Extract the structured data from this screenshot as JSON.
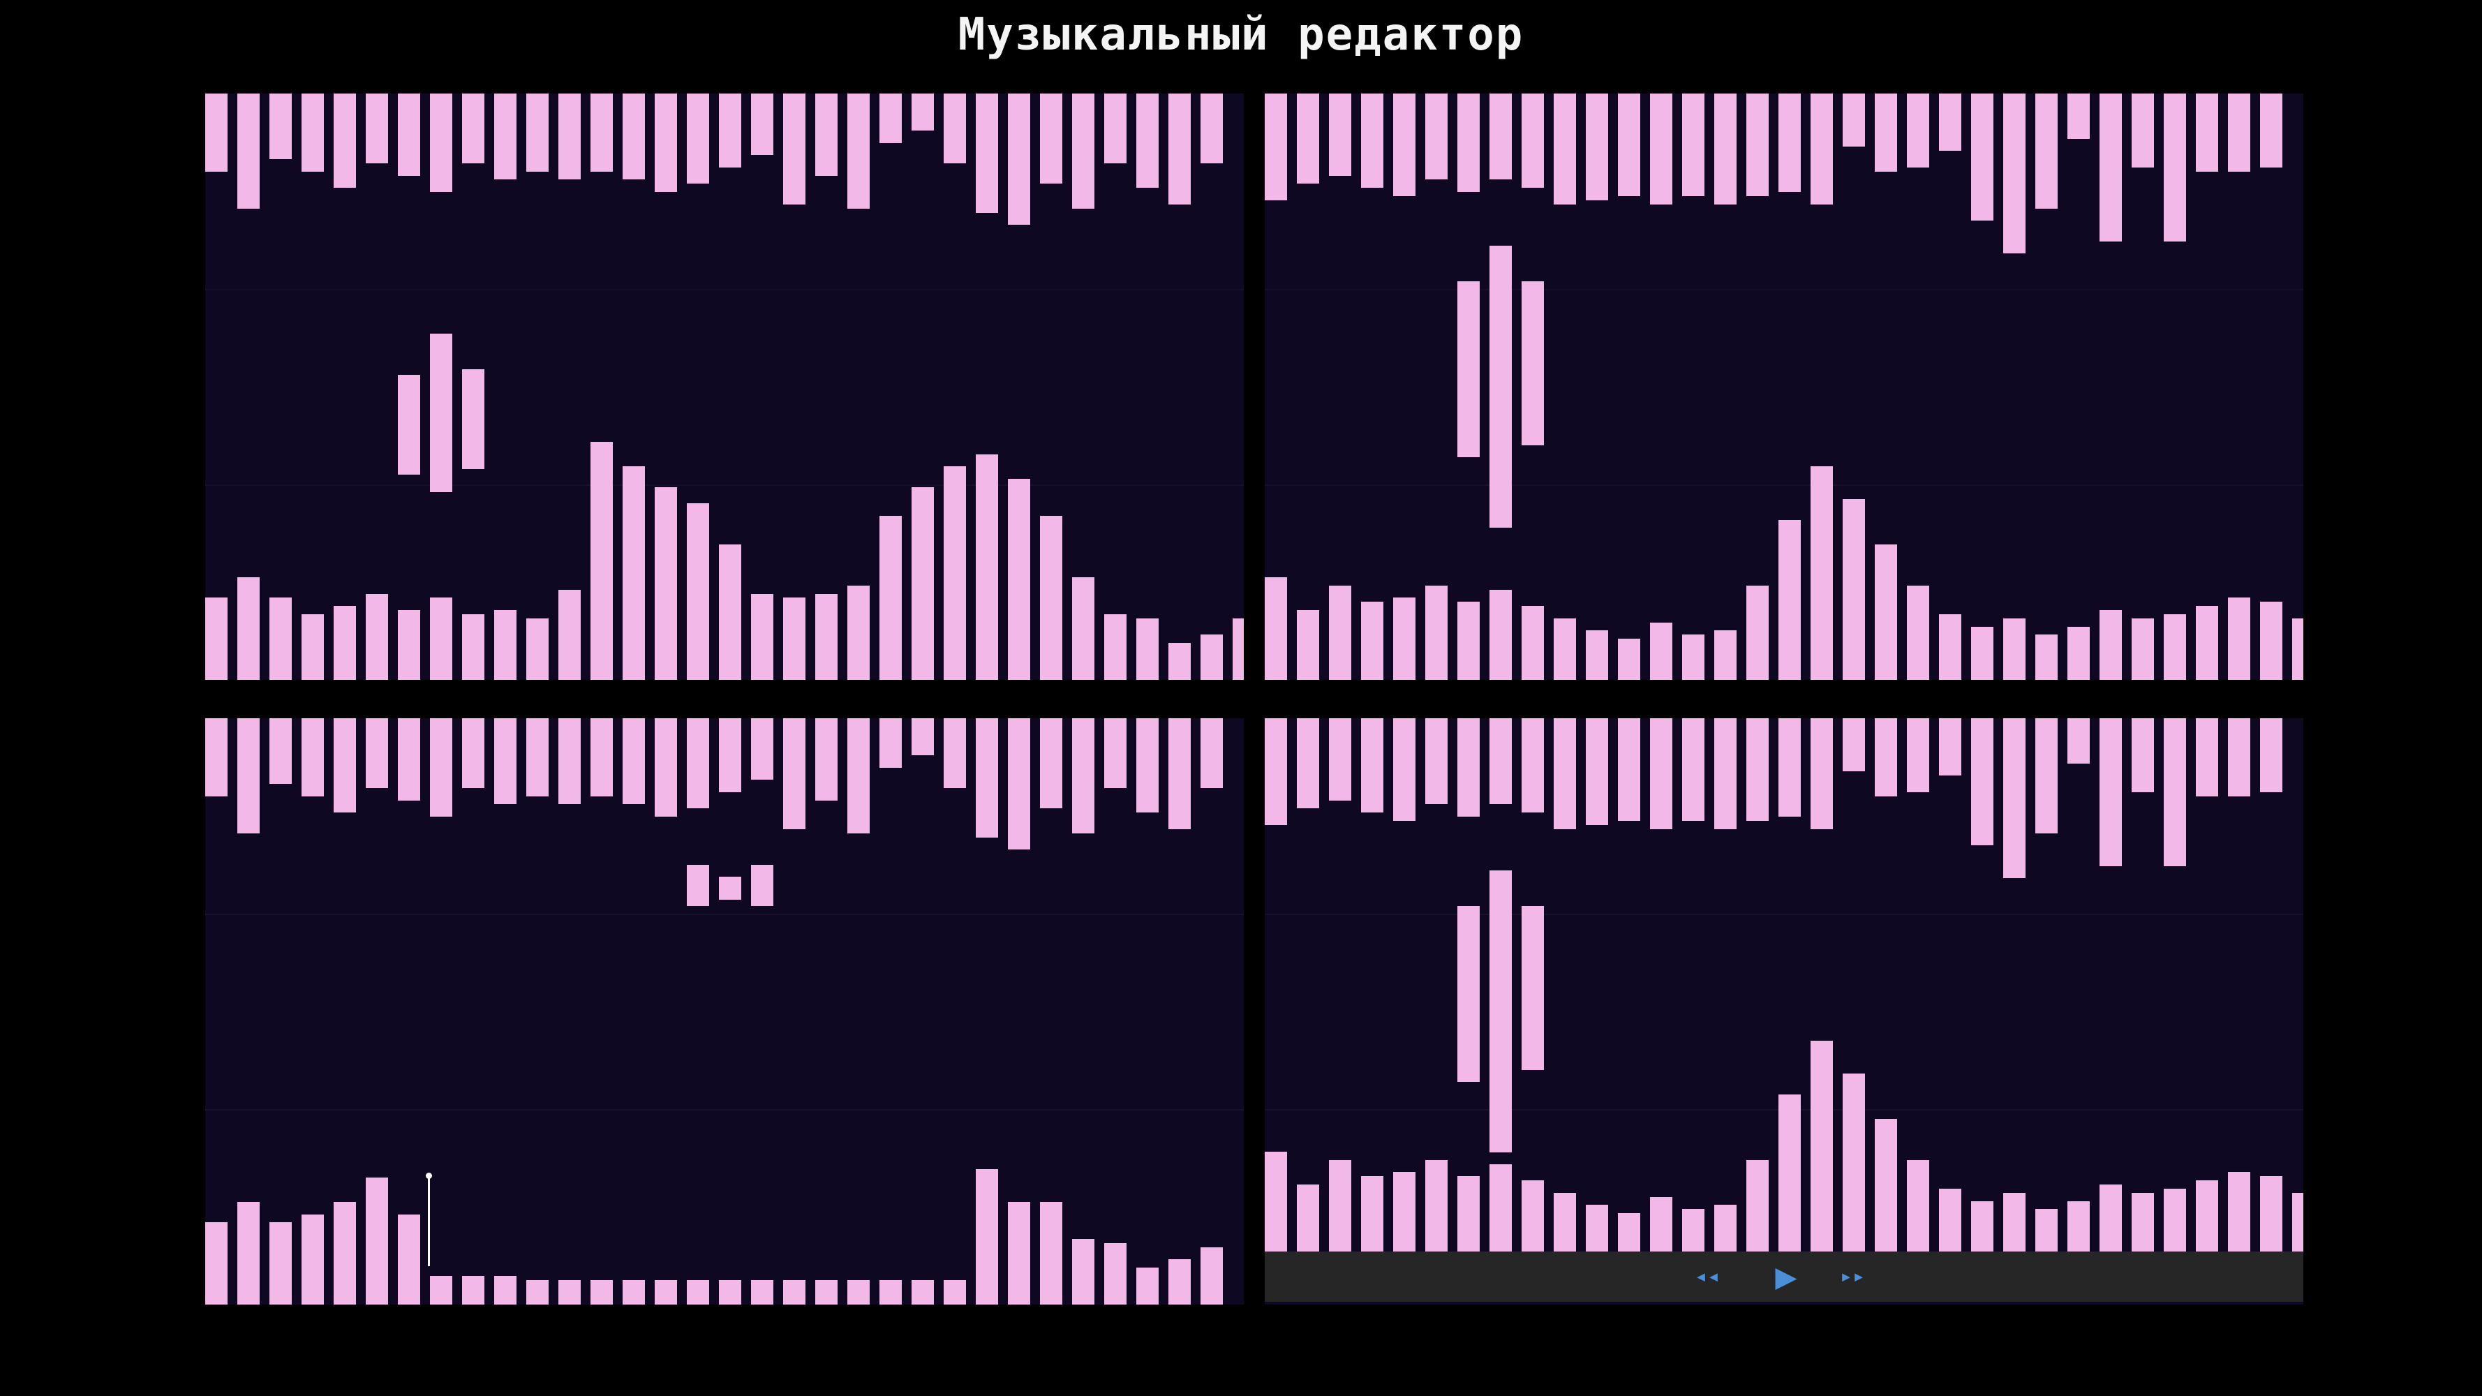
{
  "app": {
    "title": "Музыкальный редактор"
  },
  "colors": {
    "background": "#000000",
    "panel": "#0e0823",
    "bar": "#f2b8e8",
    "transport": "#262626",
    "transport_icon": "#4a8fd8"
  },
  "transport": {
    "rewind": {
      "icon": "rewind-icon",
      "glyph": "◂◂"
    },
    "play": {
      "icon": "play-icon",
      "glyph": "▶"
    },
    "fast_forward": {
      "icon": "fast-forward-icon",
      "glyph": "▸▸"
    }
  },
  "tracks_max": 100,
  "panels": [
    {
      "name": "pattern-panel-1",
      "top": [
        19,
        28,
        16,
        19,
        23,
        17,
        20,
        24,
        17,
        21,
        19,
        21,
        19,
        21,
        24,
        22,
        18,
        15,
        27,
        20,
        28,
        12,
        9,
        17,
        29,
        32,
        22,
        28,
        17,
        23,
        27,
        17
      ],
      "mid": [
        null,
        null,
        null,
        null,
        null,
        null,
        [
          48,
          65
        ],
        [
          41,
          68
        ],
        [
          47,
          64
        ],
        null,
        null,
        null,
        null,
        null,
        null,
        null,
        null,
        null,
        null,
        null,
        null,
        null,
        null,
        null,
        null,
        null,
        null,
        null,
        null,
        null,
        null,
        null
      ],
      "bottom": [
        20,
        25,
        20,
        16,
        18,
        21,
        17,
        20,
        16,
        17,
        15,
        22,
        58,
        52,
        47,
        43,
        33,
        21,
        20,
        21,
        23,
        40,
        47,
        52,
        55,
        49,
        40,
        25,
        16,
        15,
        9,
        11,
        15
      ]
    },
    {
      "name": "pattern-panel-2",
      "top": [
        26,
        22,
        20,
        23,
        25,
        21,
        24,
        21,
        23,
        27,
        26,
        25,
        27,
        25,
        27,
        25,
        24,
        27,
        13,
        19,
        18,
        14,
        31,
        39,
        28,
        11,
        36,
        18,
        36,
        19,
        19,
        18
      ],
      "mid": [
        null,
        null,
        null,
        null,
        null,
        null,
        [
          32,
          62
        ],
        [
          26,
          74
        ],
        [
          32,
          60
        ],
        null,
        null,
        null,
        null,
        null,
        null,
        null,
        null,
        null,
        null,
        null,
        null,
        null,
        null,
        null,
        null,
        null,
        null,
        null,
        null,
        null,
        null,
        null
      ],
      "bottom": [
        25,
        17,
        23,
        19,
        20,
        23,
        19,
        22,
        18,
        15,
        12,
        10,
        14,
        11,
        12,
        23,
        39,
        52,
        44,
        33,
        23,
        16,
        13,
        15,
        11,
        13,
        17,
        15,
        16,
        18,
        20,
        19,
        15
      ]
    },
    {
      "name": "pattern-panel-3",
      "top": [
        19,
        28,
        16,
        19,
        23,
        17,
        20,
        24,
        17,
        21,
        19,
        21,
        19,
        21,
        24,
        22,
        18,
        15,
        27,
        20,
        28,
        12,
        9,
        17,
        29,
        32,
        22,
        28,
        17,
        23,
        27,
        17
      ],
      "mid": [
        null,
        null,
        null,
        null,
        null,
        null,
        null,
        null,
        null,
        null,
        null,
        null,
        null,
        null,
        null,
        [
          25,
          32
        ],
        [
          27,
          31
        ],
        [
          25,
          32
        ],
        null,
        null,
        null,
        null,
        null,
        null,
        null,
        null,
        null,
        null,
        null,
        null,
        null,
        null
      ],
      "bottom": [
        20,
        25,
        20,
        22,
        25,
        31,
        22,
        7,
        7,
        7,
        6,
        6,
        6,
        6,
        6,
        6,
        6,
        6,
        6,
        6,
        6,
        6,
        6,
        6,
        33,
        25,
        25,
        16,
        15,
        9,
        11,
        14
      ]
    },
    {
      "name": "pattern-panel-4",
      "top": [
        26,
        22,
        20,
        23,
        25,
        21,
        24,
        21,
        23,
        27,
        26,
        25,
        27,
        25,
        27,
        25,
        24,
        27,
        13,
        19,
        18,
        14,
        31,
        39,
        28,
        11,
        36,
        18,
        36,
        19,
        19,
        18
      ],
      "mid": [
        null,
        null,
        null,
        null,
        null,
        null,
        [
          32,
          62
        ],
        [
          26,
          74
        ],
        [
          32,
          60
        ],
        null,
        null,
        null,
        null,
        null,
        null,
        null,
        null,
        null,
        null,
        null,
        null,
        null,
        null,
        null,
        null,
        null,
        null,
        null,
        null,
        null,
        null,
        null
      ],
      "bottom": [
        25,
        17,
        23,
        19,
        20,
        23,
        19,
        22,
        18,
        15,
        12,
        10,
        14,
        11,
        12,
        23,
        39,
        52,
        44,
        33,
        23,
        16,
        13,
        15,
        11,
        13,
        17,
        15,
        16,
        18,
        20,
        19,
        15
      ]
    }
  ]
}
